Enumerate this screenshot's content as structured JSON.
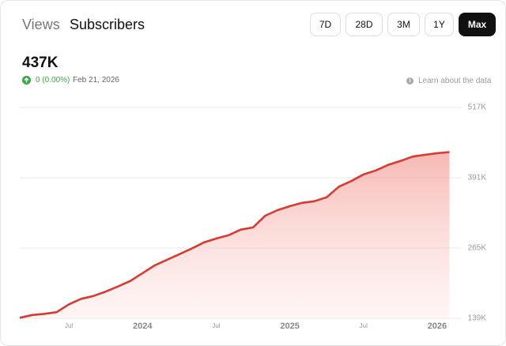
{
  "tabs": [
    "Views",
    "Subscribers"
  ],
  "ranges": [
    "7D",
    "28D",
    "3M",
    "1Y",
    "Max"
  ],
  "summary": {
    "total": "437K",
    "change": "0 (0.00%)",
    "date": "Feb 21, 2026"
  },
  "learn_link": "Learn about the data",
  "chart_data": {
    "type": "area",
    "x": [
      "2023-03",
      "2023-04",
      "2023-05",
      "2023-06",
      "2023-07",
      "2023-08",
      "2023-09",
      "2023-10",
      "2023-11",
      "2023-12",
      "2024-01",
      "2024-02",
      "2024-03",
      "2024-04",
      "2024-05",
      "2024-06",
      "2024-07",
      "2024-08",
      "2024-09",
      "2024-10",
      "2024-11",
      "2024-12",
      "2025-01",
      "2025-02",
      "2025-03",
      "2025-04",
      "2025-05",
      "2025-06",
      "2025-07",
      "2025-08",
      "2025-09",
      "2025-10",
      "2025-11",
      "2025-12",
      "2026-01",
      "2026-02"
    ],
    "series": [
      {
        "name": "Subscribers",
        "color": "#d93a2f",
        "values": [
          140000,
          145000,
          147000,
          150000,
          164000,
          174000,
          179000,
          187000,
          196000,
          206000,
          220000,
          234000,
          244000,
          254000,
          264000,
          275000,
          282000,
          288000,
          298000,
          302000,
          323000,
          333000,
          340000,
          346000,
          349000,
          356000,
          375000,
          385000,
          397000,
          404000,
          414000,
          421000,
          429000,
          432000,
          435000,
          437000
        ]
      }
    ],
    "xlim": [
      "2023-03",
      "2026-03"
    ],
    "xticks": [
      {
        "value": "2023-07",
        "label": "Jul"
      },
      {
        "value": "2024-01",
        "label": "2024"
      },
      {
        "value": "2024-07",
        "label": "Jul"
      },
      {
        "value": "2025-01",
        "label": "2025"
      },
      {
        "value": "2025-07",
        "label": "Jul"
      },
      {
        "value": "2026-01",
        "label": "2026"
      }
    ],
    "ylim": [
      139000,
      517000
    ],
    "yticks": [
      {
        "value": 139000,
        "label": "139K"
      },
      {
        "value": 265000,
        "label": "265K"
      },
      {
        "value": 391000,
        "label": "391K"
      },
      {
        "value": 517000,
        "label": "517K"
      }
    ],
    "grid": true
  }
}
